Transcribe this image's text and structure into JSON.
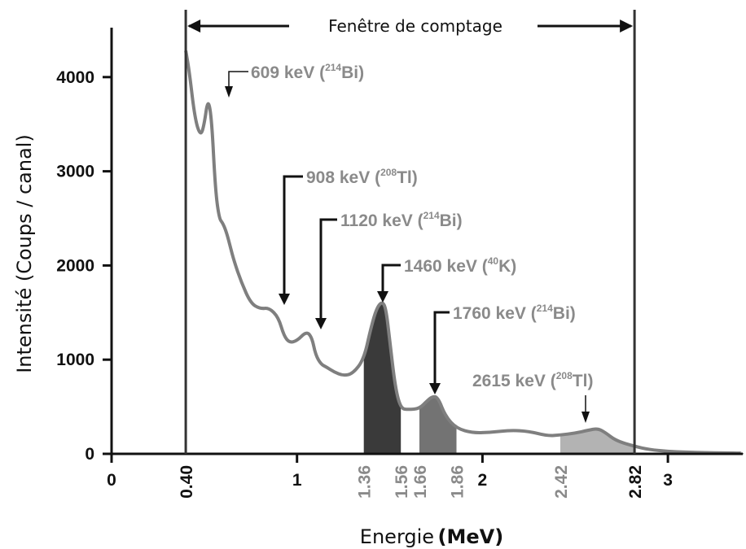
{
  "chart_data": {
    "type": "area",
    "title": "",
    "xlabel": "Energie",
    "xlabel_unit": "(MeV)",
    "ylabel": "Intensité  (Coups / canal)",
    "xlim": [
      0,
      3.4
    ],
    "ylim": [
      0,
      4400
    ],
    "y_ticks": [
      0,
      1000,
      2000,
      3000,
      4000
    ],
    "x_ticks_major": [
      {
        "value": 0,
        "label": "0"
      },
      {
        "value": 1,
        "label": "1"
      },
      {
        "value": 2,
        "label": "2"
      },
      {
        "value": 3,
        "label": "3"
      }
    ],
    "x_ticks_rotated": [
      {
        "value": 0.4,
        "label": "0.40",
        "color": "#111111"
      },
      {
        "value": 1.36,
        "label": "1.36",
        "color": "#8a8a8a"
      },
      {
        "value": 1.56,
        "label": "1.56",
        "color": "#8a8a8a"
      },
      {
        "value": 1.66,
        "label": "1.66",
        "color": "#8a8a8a"
      },
      {
        "value": 1.86,
        "label": "1.86",
        "color": "#8a8a8a"
      },
      {
        "value": 2.42,
        "label": "2.42",
        "color": "#8a8a8a"
      },
      {
        "value": 2.82,
        "label": "2.82",
        "color": "#111111"
      }
    ],
    "counting_window": {
      "label": "Fenêtre de comptage",
      "from": 0.4,
      "to": 2.82
    },
    "series": [
      {
        "x": [
          0.4,
          0.42,
          0.45,
          0.48,
          0.5,
          0.52,
          0.54,
          0.56,
          0.58,
          0.6,
          0.62,
          0.64,
          0.66,
          0.7,
          0.75,
          0.8,
          0.85,
          0.9,
          0.93,
          0.96,
          1.0,
          1.05,
          1.08,
          1.1,
          1.13,
          1.16,
          1.2,
          1.25,
          1.3,
          1.36,
          1.4,
          1.43,
          1.46,
          1.48,
          1.5,
          1.53,
          1.56,
          1.6,
          1.66,
          1.7,
          1.73,
          1.76,
          1.8,
          1.86,
          1.95,
          2.05,
          2.15,
          2.25,
          2.35,
          2.42,
          2.5,
          2.57,
          2.62,
          2.66,
          2.72,
          2.82,
          2.9,
          3.0,
          3.1,
          3.2,
          3.3,
          3.4
        ],
        "y": [
          4280,
          4050,
          3550,
          3370,
          3500,
          3780,
          3550,
          2800,
          2500,
          2450,
          2350,
          2200,
          2050,
          1820,
          1600,
          1540,
          1550,
          1450,
          1250,
          1180,
          1200,
          1300,
          1240,
          1050,
          950,
          920,
          870,
          830,
          850,
          1000,
          1350,
          1550,
          1620,
          1540,
          1200,
          700,
          480,
          470,
          480,
          560,
          610,
          600,
          400,
          270,
          220,
          230,
          250,
          240,
          190,
          200,
          220,
          250,
          270,
          230,
          140,
          80,
          45,
          25,
          18,
          12,
          10,
          8
        ]
      }
    ],
    "shaded_windows": [
      {
        "from": 1.36,
        "to": 1.56,
        "color": "#3a3a3a"
      },
      {
        "from": 1.66,
        "to": 1.86,
        "color": "#737373"
      },
      {
        "from": 2.42,
        "to": 2.82,
        "color": "#b3b3b3"
      }
    ],
    "line_color": "#7f7f7f",
    "annotations": [
      {
        "main": "609 keV (",
        "sup": "214",
        "elem": "Bi)",
        "x": 0.609,
        "y": 3780
      },
      {
        "main": "908 keV (",
        "sup": "208",
        "elem": "Tl)",
        "x": 0.908,
        "y": 1560
      },
      {
        "main": "1120 keV (",
        "sup": "214",
        "elem": "Bi)",
        "x": 1.12,
        "y": 1290
      },
      {
        "main": "1460 keV (",
        "sup": "40",
        "elem": "K)",
        "x": 1.46,
        "y": 1620
      },
      {
        "main": "1760 keV (",
        "sup": "214",
        "elem": "Bi)",
        "x": 1.76,
        "y": 610
      },
      {
        "main": "2615 keV (",
        "sup": "208",
        "elem": "Tl)",
        "x": 2.615,
        "y": 270
      }
    ]
  }
}
